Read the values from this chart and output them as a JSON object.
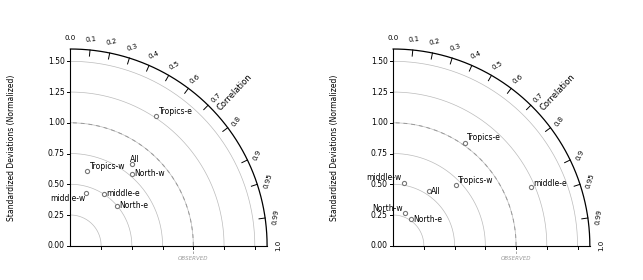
{
  "diagram_a": {
    "points": [
      {
        "label": "Tropics-e",
        "std": 1.26,
        "corr": 0.55,
        "lha": "left",
        "ldx": 0.03,
        "ldy": 0.04
      },
      {
        "label": "All",
        "std": 0.83,
        "corr": 0.6,
        "lha": "left",
        "ldx": -0.01,
        "ldy": 0.04
      },
      {
        "label": "North-w",
        "std": 0.77,
        "corr": 0.65,
        "lha": "left",
        "ldx": 0.02,
        "ldy": 0.0
      },
      {
        "label": "Tropics-w",
        "std": 0.62,
        "corr": 0.22,
        "lha": "left",
        "ldx": 0.02,
        "ldy": 0.04
      },
      {
        "label": "middle-w",
        "std": 0.45,
        "corr": 0.29,
        "lha": "right",
        "ldx": -0.01,
        "ldy": -0.05
      },
      {
        "label": "middle-e",
        "std": 0.5,
        "corr": 0.54,
        "lha": "left",
        "ldx": 0.02,
        "ldy": 0.0
      },
      {
        "label": "North-e",
        "std": 0.5,
        "corr": 0.76,
        "lha": "left",
        "ldx": 0.02,
        "ldy": 0.0
      }
    ]
  },
  "diagram_b": {
    "points": [
      {
        "label": "middle-e",
        "std": 1.22,
        "corr": 0.92,
        "lha": "left",
        "ldx": 0.02,
        "ldy": 0.03
      },
      {
        "label": "Tropics-e",
        "std": 1.02,
        "corr": 0.57,
        "lha": "left",
        "ldx": 0.02,
        "ldy": 0.04
      },
      {
        "label": "Tropics-w",
        "std": 0.71,
        "corr": 0.72,
        "lha": "left",
        "ldx": 0.02,
        "ldy": 0.04
      },
      {
        "label": "middle-w",
        "std": 0.52,
        "corr": 0.17,
        "lha": "right",
        "ldx": -0.02,
        "ldy": 0.04
      },
      {
        "label": "All",
        "std": 0.53,
        "corr": 0.55,
        "lha": "left",
        "ldx": 0.02,
        "ldy": 0.0
      },
      {
        "label": "North-w",
        "std": 0.28,
        "corr": 0.35,
        "lha": "right",
        "ldx": -0.02,
        "ldy": 0.04
      },
      {
        "label": "North-e",
        "std": 0.26,
        "corr": 0.55,
        "lha": "left",
        "ldx": 0.02,
        "ldy": 0.0
      }
    ]
  },
  "corr_ticks": [
    0.0,
    0.1,
    0.2,
    0.3,
    0.4,
    0.5,
    0.6,
    0.7,
    0.8,
    0.9,
    0.95,
    0.99,
    1.0
  ],
  "std_max": 1.6,
  "ref_std": 1.0,
  "point_edgecolor": "#777777",
  "line_color": "#000000",
  "dashed_color": "#999999",
  "bg_color": "#ffffff",
  "ylabel": "Standardized Deviations (Normalized)",
  "corr_label": "Correlation",
  "observed_label": "OBSERVED",
  "fig_width": 6.43,
  "fig_height": 2.8,
  "dpi": 100
}
